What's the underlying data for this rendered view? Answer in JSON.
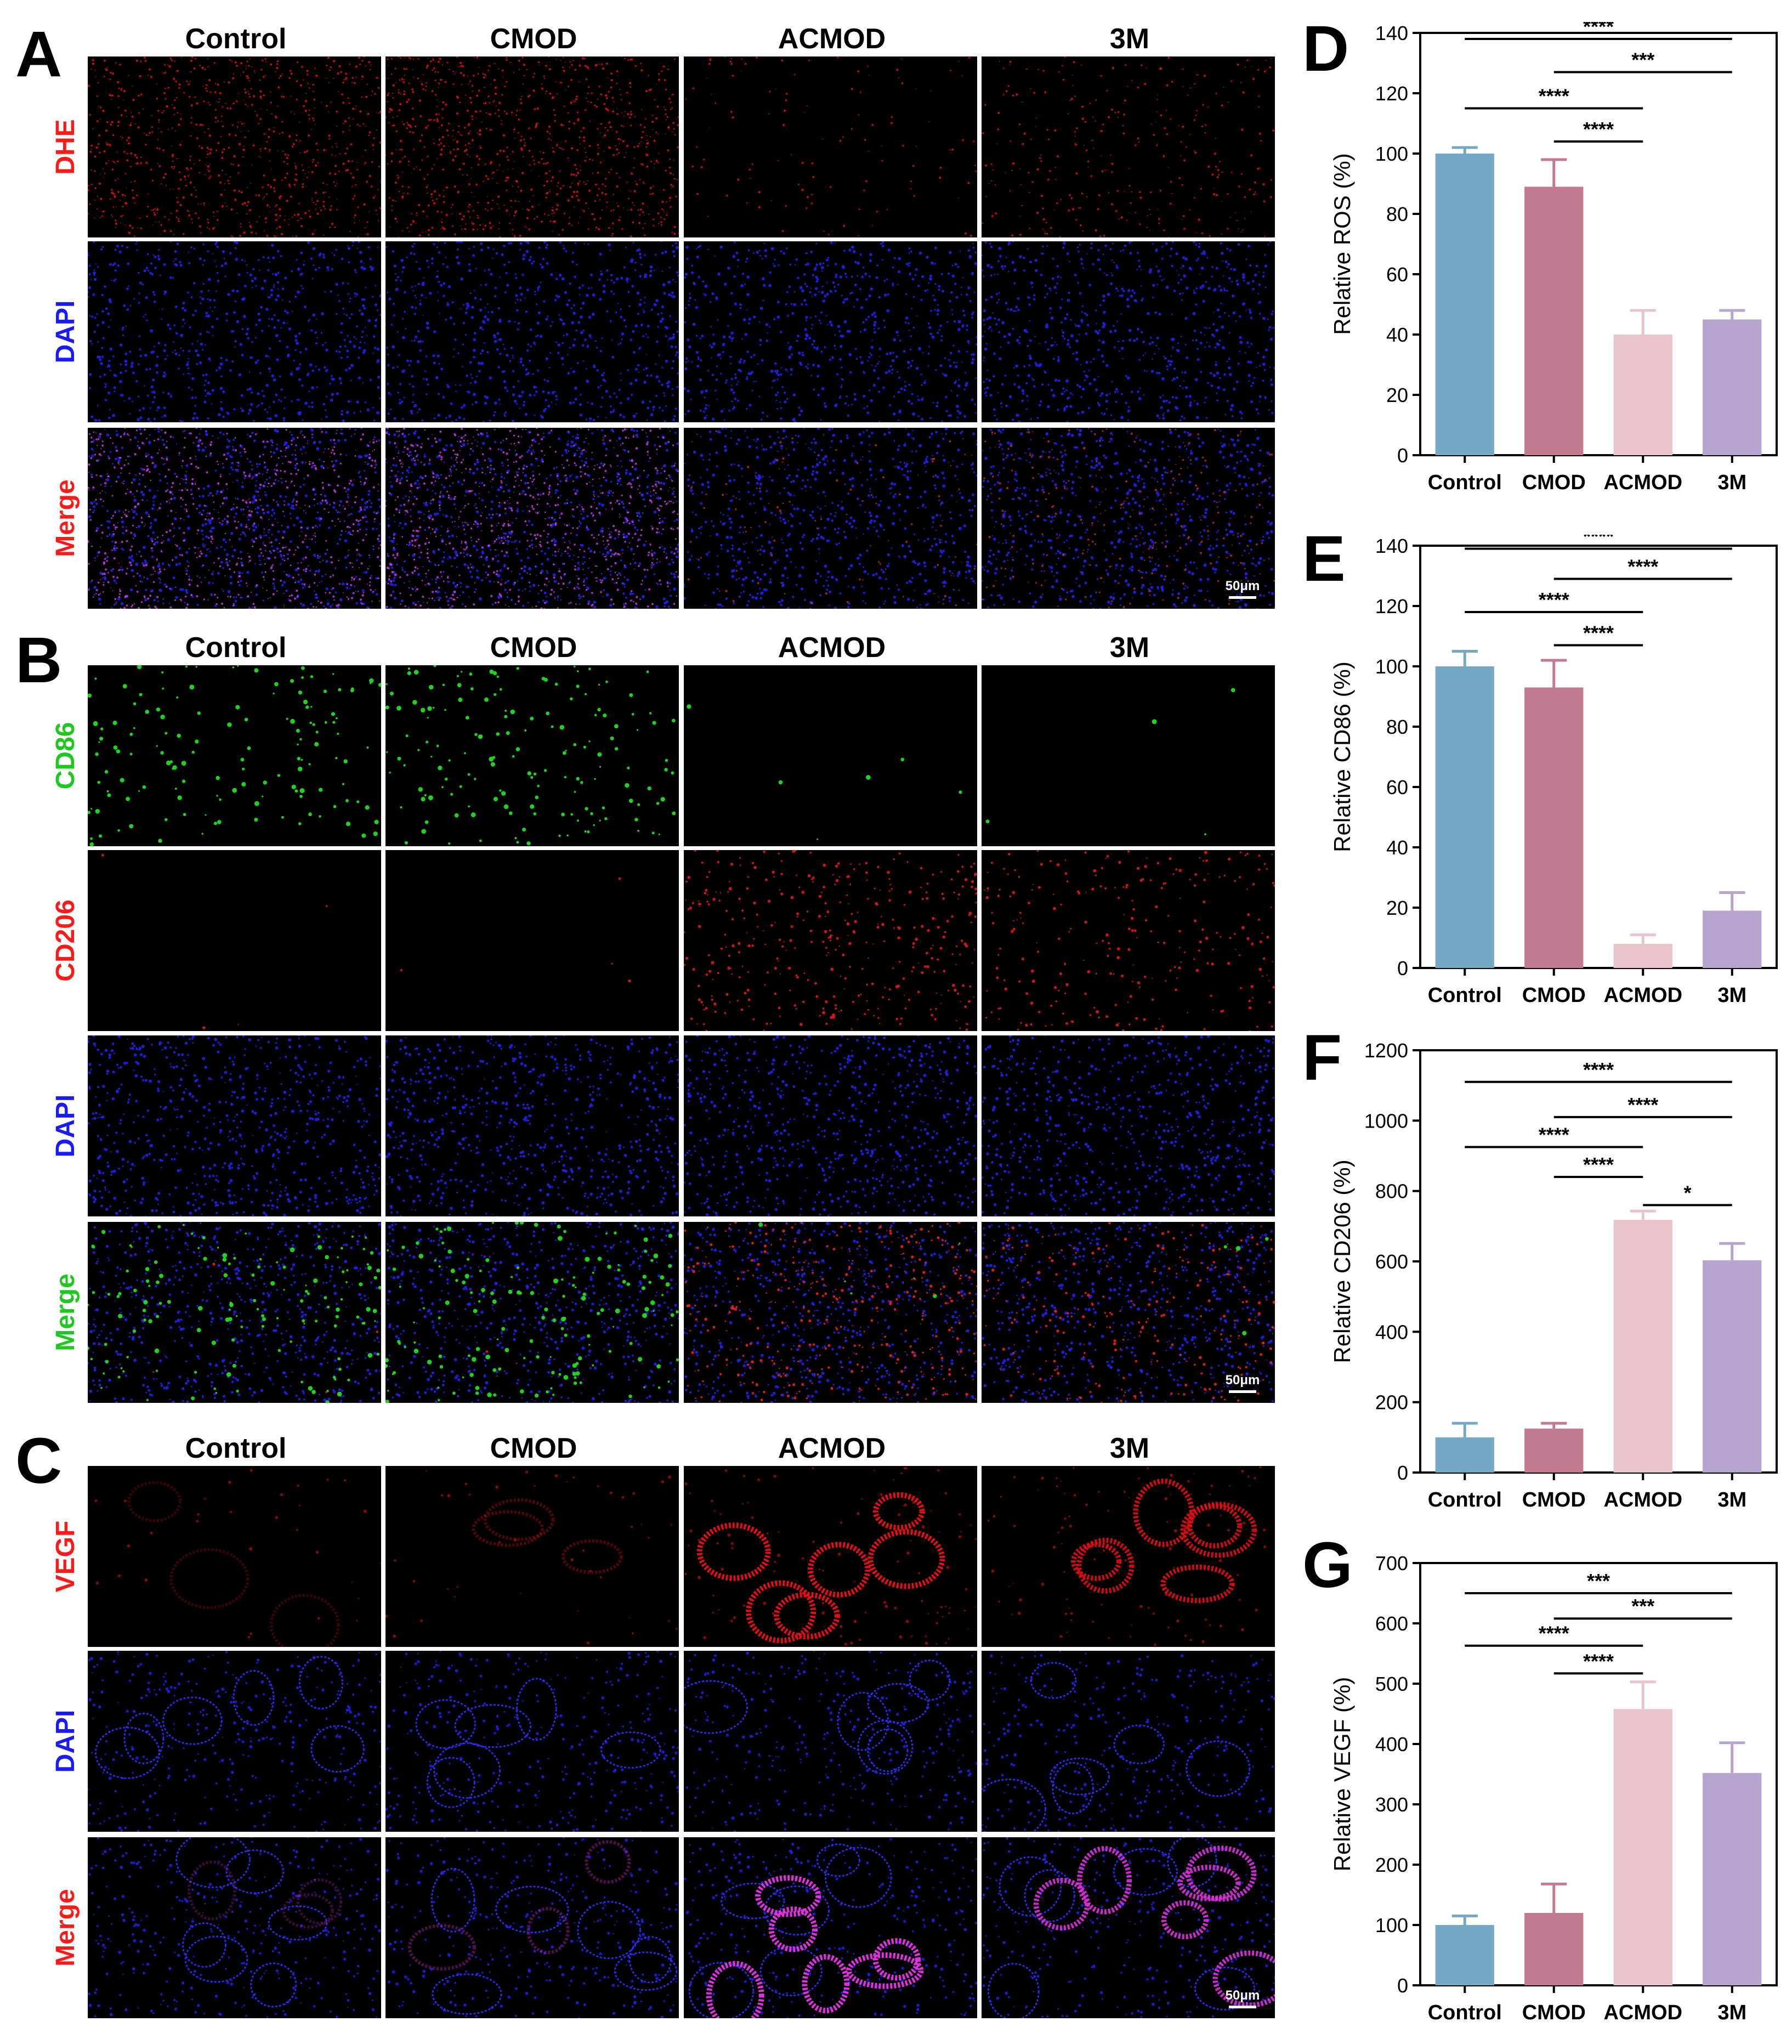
{
  "figure": {
    "panel_letters": [
      "A",
      "B",
      "C",
      "D",
      "E",
      "F",
      "G"
    ],
    "groups": [
      "Control",
      "CMOD",
      "ACMOD",
      "3M"
    ],
    "scale_bar_label": "50μm",
    "microscopy": [
      {
        "letter": "A",
        "columns": [
          "Control",
          "CMOD",
          "ACMOD",
          "3M"
        ],
        "rows": [
          {
            "label": "DHE",
            "label_color": "#ff1a1a",
            "stain": "dhe"
          },
          {
            "label": "DAPI",
            "label_color": "#1a1aff",
            "stain": "dapi"
          },
          {
            "label": "Merge",
            "label_color": "#ff1a1a",
            "stain": "merge_dhe"
          }
        ]
      },
      {
        "letter": "B",
        "columns": [
          "Control",
          "CMOD",
          "ACMOD",
          "3M"
        ],
        "rows": [
          {
            "label": "CD86",
            "label_color": "#1ec81e",
            "stain": "cd86"
          },
          {
            "label": "CD206",
            "label_color": "#ff1a1a",
            "stain": "cd206"
          },
          {
            "label": "DAPI",
            "label_color": "#1a1aff",
            "stain": "dapi"
          },
          {
            "label": "Merge",
            "label_color": "#1ec81e",
            "stain": "merge_b"
          }
        ]
      },
      {
        "letter": "C",
        "columns": [
          "Control",
          "CMOD",
          "ACMOD",
          "3M"
        ],
        "rows": [
          {
            "label": "VEGF",
            "label_color": "#ff1a1a",
            "stain": "vegf"
          },
          {
            "label": "DAPI",
            "label_color": "#1a1aff",
            "stain": "dapi_c"
          },
          {
            "label": "Merge",
            "label_color": "#ff1a1a",
            "stain": "merge_c"
          }
        ]
      }
    ],
    "colors": {
      "Control": "#74a9c6",
      "CMOD": "#c47a8e",
      "ACMOD": "#e9c4cb",
      "3M": "#b8a5cf"
    }
  },
  "chart_data": [
    {
      "type": "bar",
      "letter": "D",
      "categories": [
        "Control",
        "CMOD",
        "ACMOD",
        "3M"
      ],
      "values": [
        100,
        89,
        40,
        45
      ],
      "errors": [
        2,
        9,
        8,
        3
      ],
      "ylabel": "Relative ROS (%)",
      "ylim": [
        0,
        140
      ],
      "yticks": [
        0,
        20,
        40,
        60,
        80,
        100,
        120,
        140
      ],
      "significance": [
        {
          "from": 0,
          "to": 3,
          "label": "****",
          "y": 138
        },
        {
          "from": 1,
          "to": 3,
          "label": "***",
          "y": 127
        },
        {
          "from": 0,
          "to": 2,
          "label": "****",
          "y": 115
        },
        {
          "from": 1,
          "to": 2,
          "label": "****",
          "y": 104
        }
      ]
    },
    {
      "type": "bar",
      "letter": "E",
      "categories": [
        "Control",
        "CMOD",
        "ACMOD",
        "3M"
      ],
      "values": [
        100,
        93,
        8,
        19
      ],
      "errors": [
        5,
        9,
        3,
        6
      ],
      "ylabel": "Relative CD86 (%)",
      "ylim": [
        0,
        140
      ],
      "yticks": [
        0,
        20,
        40,
        60,
        80,
        100,
        120,
        140
      ],
      "significance": [
        {
          "from": 0,
          "to": 3,
          "label": "****",
          "y": 139
        },
        {
          "from": 1,
          "to": 3,
          "label": "****",
          "y": 129
        },
        {
          "from": 0,
          "to": 2,
          "label": "****",
          "y": 118
        },
        {
          "from": 1,
          "to": 2,
          "label": "****",
          "y": 107
        }
      ]
    },
    {
      "type": "bar",
      "letter": "F",
      "categories": [
        "Control",
        "CMOD",
        "ACMOD",
        "3M"
      ],
      "values": [
        100,
        125,
        718,
        603
      ],
      "errors": [
        40,
        15,
        25,
        48
      ],
      "ylabel": "Relative CD206 (%)",
      "ylim": [
        0,
        1200
      ],
      "yticks": [
        0,
        200,
        400,
        600,
        800,
        1000,
        1200
      ],
      "significance": [
        {
          "from": 0,
          "to": 3,
          "label": "****",
          "y": 1110
        },
        {
          "from": 1,
          "to": 3,
          "label": "****",
          "y": 1010
        },
        {
          "from": 0,
          "to": 2,
          "label": "****",
          "y": 925
        },
        {
          "from": 1,
          "to": 2,
          "label": "****",
          "y": 840
        },
        {
          "from": 2,
          "to": 3,
          "label": "*",
          "y": 760
        }
      ]
    },
    {
      "type": "bar",
      "letter": "G",
      "categories": [
        "Control",
        "CMOD",
        "ACMOD",
        "3M"
      ],
      "values": [
        100,
        120,
        458,
        352
      ],
      "errors": [
        15,
        48,
        45,
        50
      ],
      "ylabel": "Relative VEGF (%)",
      "ylim": [
        0,
        700
      ],
      "yticks": [
        0,
        100,
        200,
        300,
        400,
        500,
        600,
        700
      ],
      "significance": [
        {
          "from": 0,
          "to": 3,
          "label": "***",
          "y": 650
        },
        {
          "from": 1,
          "to": 3,
          "label": "***",
          "y": 608
        },
        {
          "from": 0,
          "to": 2,
          "label": "****",
          "y": 563
        },
        {
          "from": 1,
          "to": 2,
          "label": "****",
          "y": 517
        }
      ]
    }
  ]
}
